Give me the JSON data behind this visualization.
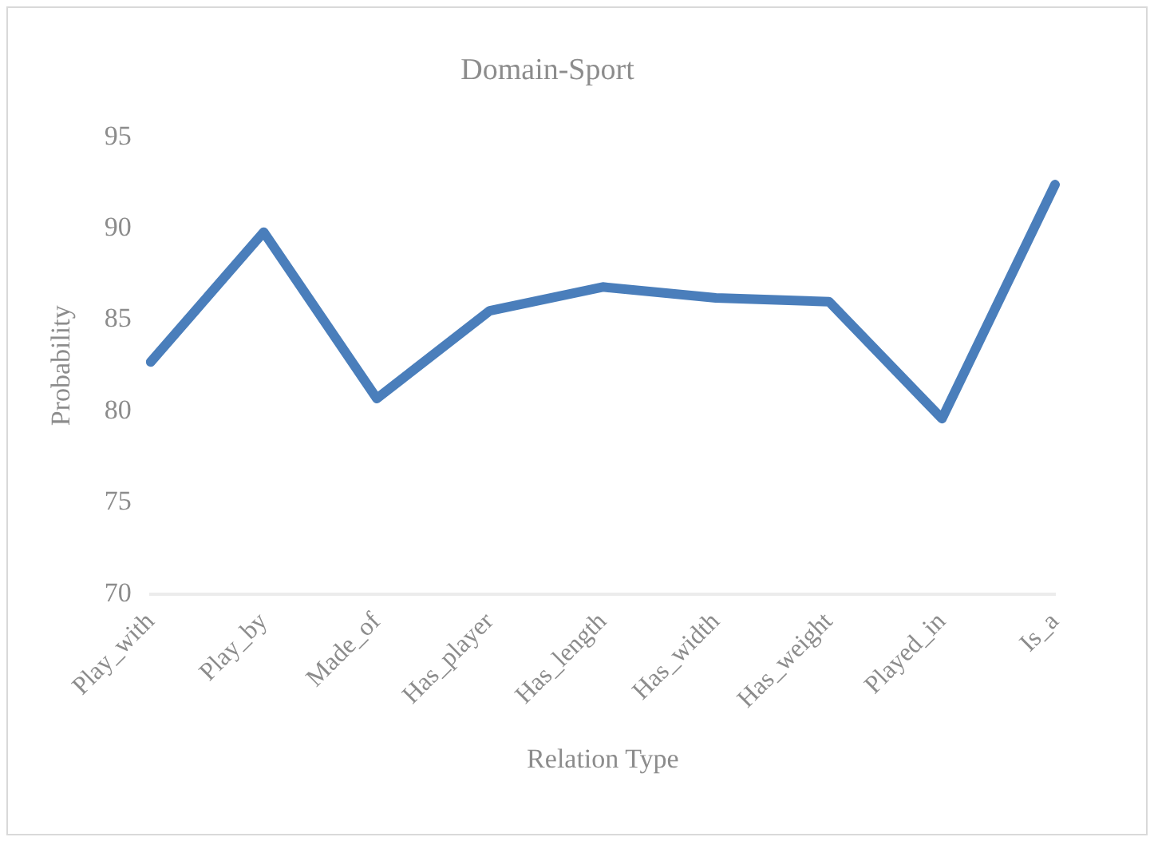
{
  "chart_data": {
    "type": "line",
    "title": "Domain-Sport",
    "xlabel": "Relation Type",
    "ylabel": "Probability",
    "categories": [
      "Play_with",
      "Play_by",
      "Made_of",
      "Has_player",
      "Has_length",
      "Has_width",
      "Has_weight",
      "Played_in",
      "Is_a"
    ],
    "series": [
      {
        "color": "#4a7ebb",
        "values": [
          82.7,
          89.8,
          80.7,
          85.5,
          86.8,
          86.2,
          86.0,
          79.6,
          92.4
        ]
      }
    ],
    "ylim": [
      70,
      95
    ],
    "yticks": [
      70,
      75,
      80,
      85,
      90,
      95
    ],
    "grid": false,
    "legend": false,
    "marker": "none",
    "line_style": "solid"
  }
}
